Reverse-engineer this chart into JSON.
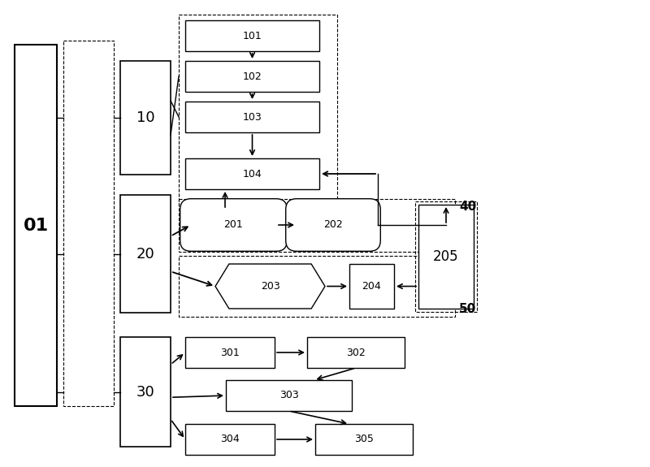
{
  "bg_color": "#ffffff",
  "label_01": "01",
  "label_10": "10",
  "label_20": "20",
  "label_30": "30",
  "label_40": "40",
  "label_50": "50",
  "labels_100": [
    "101",
    "102",
    "103",
    "104"
  ],
  "labels_200": [
    "201",
    "202",
    "203",
    "204",
    "205"
  ],
  "labels_300": [
    "301",
    "302",
    "303",
    "304",
    "305"
  ],
  "figw": 8.0,
  "figh": 5.75,
  "dpi": 100
}
